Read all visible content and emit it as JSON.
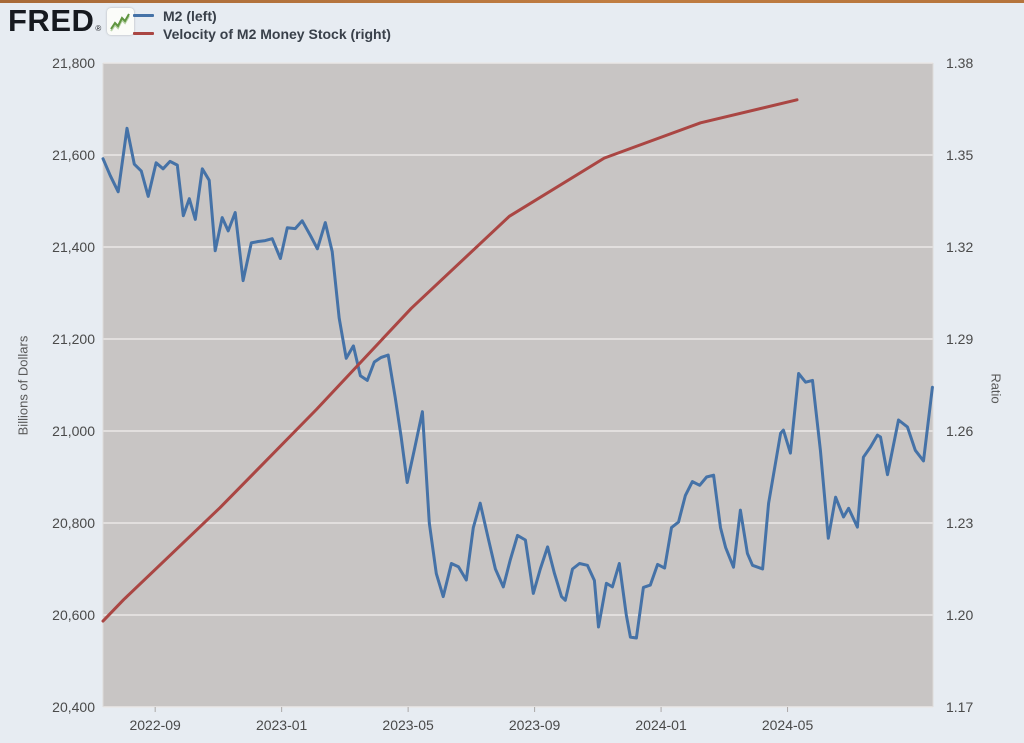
{
  "header": {
    "logo_text": "FRED",
    "logo_reg": "®",
    "logo_icon": "green-sparkline-icon"
  },
  "legend": {
    "items": [
      {
        "label": "M2 (left)",
        "color": "#4572a7"
      },
      {
        "label": "Velocity of M2 Money Stock (right)",
        "color": "#aa4643"
      }
    ]
  },
  "colors": {
    "page_background": "#e7ecf2",
    "plot_background": "#c8c5c4",
    "gridline": "#eae8e7",
    "m2_line": "#4572a7",
    "velocity_line": "#aa4643",
    "tick_text": "#4a4a4a",
    "top_accent_bar": "#b5743c"
  },
  "chart_data": {
    "type": "line",
    "title": "",
    "x_unit": "months since 2022-07-01 (tick labels shown as YYYY-MM)",
    "x_domain": [
      0.35,
      26.6
    ],
    "x_ticks": [
      {
        "m": 2,
        "label": "2022-09"
      },
      {
        "m": 6,
        "label": "2023-01"
      },
      {
        "m": 10,
        "label": "2023-05"
      },
      {
        "m": 14,
        "label": "2023-09"
      },
      {
        "m": 18,
        "label": "2024-01"
      },
      {
        "m": 22,
        "label": "2024-05"
      }
    ],
    "left_axis": {
      "title": "Billions of Dollars",
      "range": [
        20400,
        21800
      ],
      "tick_step": 200,
      "tick_values": [
        21800,
        21600,
        21400,
        21200,
        21000,
        20800,
        20600,
        20400
      ],
      "tick_labels": [
        "21,800",
        "21,600",
        "21,400",
        "21,200",
        "21,000",
        "20,800",
        "20,600",
        "20,400"
      ]
    },
    "right_axis": {
      "title": "Ratio",
      "range": [
        1.17,
        1.38
      ],
      "tick_step": 0.03,
      "tick_values": [
        1.38,
        1.35,
        1.32,
        1.29,
        1.26,
        1.23,
        1.2,
        1.17
      ],
      "tick_labels": [
        "1.38",
        "1.35",
        "1.32",
        "1.29",
        "1.26",
        "1.23",
        "1.20",
        "1.17"
      ]
    },
    "grid": "horizontal light lines on gray plot background, no vertical gridlines",
    "legend_position": "top-left, outside plot",
    "series": [
      {
        "name": "M2 (left)",
        "axis": "left",
        "color": "#4572a7",
        "points": [
          [
            0.35,
            21592
          ],
          [
            0.58,
            21555
          ],
          [
            0.83,
            21520
          ],
          [
            1.11,
            21658
          ],
          [
            1.34,
            21580
          ],
          [
            1.56,
            21565
          ],
          [
            1.78,
            21510
          ],
          [
            2.03,
            21583
          ],
          [
            2.25,
            21570
          ],
          [
            2.47,
            21586
          ],
          [
            2.7,
            21578
          ],
          [
            2.89,
            21468
          ],
          [
            3.08,
            21505
          ],
          [
            3.27,
            21460
          ],
          [
            3.49,
            21570
          ],
          [
            3.71,
            21545
          ],
          [
            3.9,
            21392
          ],
          [
            4.12,
            21464
          ],
          [
            4.31,
            21435
          ],
          [
            4.53,
            21475
          ],
          [
            4.78,
            21327
          ],
          [
            5.04,
            21409
          ],
          [
            5.26,
            21412
          ],
          [
            5.48,
            21414
          ],
          [
            5.7,
            21418
          ],
          [
            5.96,
            21375
          ],
          [
            6.18,
            21442
          ],
          [
            6.43,
            21440
          ],
          [
            6.65,
            21457
          ],
          [
            6.91,
            21425
          ],
          [
            7.13,
            21396
          ],
          [
            7.38,
            21453
          ],
          [
            7.6,
            21390
          ],
          [
            7.82,
            21245
          ],
          [
            8.04,
            21158
          ],
          [
            8.27,
            21185
          ],
          [
            8.49,
            21120
          ],
          [
            8.71,
            21110
          ],
          [
            8.93,
            21150
          ],
          [
            9.15,
            21160
          ],
          [
            9.37,
            21165
          ],
          [
            9.59,
            21073
          ],
          [
            9.78,
            20986
          ],
          [
            9.97,
            20888
          ],
          [
            10.2,
            20960
          ],
          [
            10.45,
            21042
          ],
          [
            10.67,
            20800
          ],
          [
            10.89,
            20690
          ],
          [
            11.11,
            20640
          ],
          [
            11.37,
            20712
          ],
          [
            11.59,
            20705
          ],
          [
            11.84,
            20676
          ],
          [
            12.06,
            20790
          ],
          [
            12.28,
            20843
          ],
          [
            12.54,
            20765
          ],
          [
            12.76,
            20700
          ],
          [
            13.01,
            20661
          ],
          [
            13.23,
            20720
          ],
          [
            13.46,
            20773
          ],
          [
            13.71,
            20763
          ],
          [
            13.96,
            20647
          ],
          [
            14.18,
            20700
          ],
          [
            14.41,
            20748
          ],
          [
            14.63,
            20690
          ],
          [
            14.85,
            20640
          ],
          [
            14.97,
            20632
          ],
          [
            15.2,
            20700
          ],
          [
            15.42,
            20712
          ],
          [
            15.67,
            20708
          ],
          [
            15.89,
            20675
          ],
          [
            16.02,
            20574
          ],
          [
            16.27,
            20669
          ],
          [
            16.46,
            20661
          ],
          [
            16.68,
            20712
          ],
          [
            16.9,
            20600
          ],
          [
            17.03,
            20552
          ],
          [
            17.22,
            20550
          ],
          [
            17.44,
            20660
          ],
          [
            17.66,
            20665
          ],
          [
            17.89,
            20710
          ],
          [
            18.11,
            20702
          ],
          [
            18.33,
            20790
          ],
          [
            18.55,
            20802
          ],
          [
            18.77,
            20860
          ],
          [
            18.99,
            20890
          ],
          [
            19.22,
            20882
          ],
          [
            19.44,
            20900
          ],
          [
            19.66,
            20904
          ],
          [
            19.88,
            20790
          ],
          [
            20.04,
            20747
          ],
          [
            20.29,
            20704
          ],
          [
            20.51,
            20828
          ],
          [
            20.73,
            20734
          ],
          [
            20.89,
            20708
          ],
          [
            21.21,
            20700
          ],
          [
            21.4,
            20843
          ],
          [
            21.78,
            20995
          ],
          [
            21.87,
            21002
          ],
          [
            22.09,
            20952
          ],
          [
            22.35,
            21125
          ],
          [
            22.57,
            21106
          ],
          [
            22.79,
            21110
          ],
          [
            23.04,
            20958
          ],
          [
            23.29,
            20767
          ],
          [
            23.52,
            20856
          ],
          [
            23.77,
            20813
          ],
          [
            23.93,
            20832
          ],
          [
            24.21,
            20791
          ],
          [
            24.4,
            20943
          ],
          [
            24.62,
            20965
          ],
          [
            24.84,
            20991
          ],
          [
            24.94,
            20987
          ],
          [
            25.16,
            20905
          ],
          [
            25.51,
            21024
          ],
          [
            25.79,
            21009
          ],
          [
            26.04,
            20958
          ],
          [
            26.3,
            20935
          ],
          [
            26.58,
            21095
          ]
        ]
      },
      {
        "name": "Velocity of M2 Money Stock (right)",
        "axis": "right",
        "color": "#aa4643",
        "points": [
          [
            0.35,
            1.198
          ],
          [
            1.0,
            1.205
          ],
          [
            4.05,
            1.235
          ],
          [
            7.1,
            1.267
          ],
          [
            10.1,
            1.3
          ],
          [
            13.2,
            1.33
          ],
          [
            16.2,
            1.349
          ],
          [
            19.25,
            1.3605
          ],
          [
            22.3,
            1.368
          ]
        ]
      }
    ]
  }
}
